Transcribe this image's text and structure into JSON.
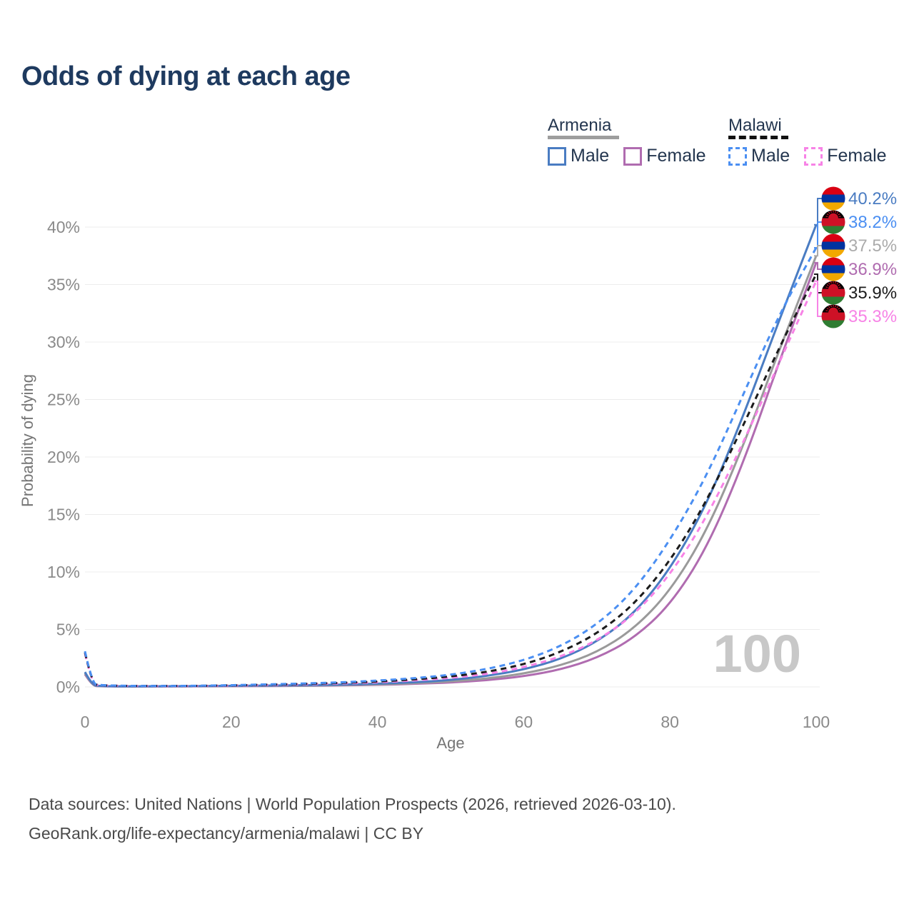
{
  "title": "Odds of dying at each age",
  "legend": {
    "groups": [
      {
        "name": "Armenia",
        "line_style": "solid",
        "rule_color": "#9e9e9e",
        "items": [
          {
            "label": "Male",
            "color": "#4a7cc2"
          },
          {
            "label": "Female",
            "color": "#b06cb0"
          }
        ]
      },
      {
        "name": "Malawi",
        "line_style": "dashed",
        "rule_color": "#111111",
        "items": [
          {
            "label": "Male",
            "color": "#4b8ff2"
          },
          {
            "label": "Female",
            "color": "#f783e6"
          }
        ]
      }
    ]
  },
  "footer": {
    "line1": "Data sources: United Nations | World Population Prospects (2026, retrieved 2026-03-10).",
    "line2": "GeoRank.org/life-expectancy/armenia/malawi | CC BY"
  },
  "chart_data": {
    "type": "line",
    "title": "Odds of dying at each age",
    "xlabel": "Age",
    "ylabel": "Probability of dying",
    "x_ticks": [
      0,
      20,
      40,
      60,
      80,
      100
    ],
    "y_ticks_pct": [
      0,
      5,
      10,
      15,
      20,
      25,
      30,
      35,
      40
    ],
    "xlim": [
      0,
      100
    ],
    "ylim_pct": [
      0,
      43
    ],
    "grid": "horizontal-only",
    "legend_position": "top-right",
    "watermark": "100",
    "ages": [
      0,
      1,
      2,
      5,
      10,
      15,
      20,
      25,
      30,
      35,
      40,
      45,
      50,
      55,
      60,
      65,
      70,
      75,
      80,
      85,
      90,
      95,
      100
    ],
    "series": [
      {
        "id": "armenia-female",
        "name": "Armenia Female",
        "color": "#b06cb0",
        "dash": "none",
        "values": [
          1.1,
          0.1,
          0.06,
          0.04,
          0.04,
          0.05,
          0.06,
          0.08,
          0.1,
          0.13,
          0.18,
          0.26,
          0.38,
          0.58,
          0.92,
          1.5,
          2.5,
          4.2,
          7.1,
          12.0,
          19.4,
          28.4,
          36.9
        ],
        "end_value_pct": 36.9
      },
      {
        "id": "armenia-combined",
        "name": "Armenia Combined",
        "color": "#9a9a9a",
        "dash": "none",
        "values": [
          1.2,
          0.12,
          0.07,
          0.05,
          0.05,
          0.06,
          0.08,
          0.1,
          0.12,
          0.16,
          0.22,
          0.32,
          0.47,
          0.72,
          1.15,
          1.85,
          3.0,
          5.0,
          8.3,
          13.5,
          20.9,
          29.4,
          37.5
        ],
        "end_value_pct": 37.5
      },
      {
        "id": "armenia-male",
        "name": "Armenia Male",
        "color": "#4a7cc2",
        "dash": "none",
        "values": [
          1.3,
          0.15,
          0.08,
          0.05,
          0.05,
          0.07,
          0.1,
          0.12,
          0.15,
          0.2,
          0.28,
          0.4,
          0.6,
          0.95,
          1.5,
          2.4,
          3.9,
          6.3,
          10.2,
          15.8,
          23.5,
          32.0,
          40.2
        ],
        "end_value_pct": 40.2
      },
      {
        "id": "malawi-female",
        "name": "Malawi Female",
        "color": "#f783e6",
        "dash": "dashed",
        "values": [
          2.9,
          0.26,
          0.13,
          0.09,
          0.07,
          0.08,
          0.11,
          0.16,
          0.22,
          0.3,
          0.4,
          0.56,
          0.78,
          1.12,
          1.7,
          2.6,
          4.0,
          6.2,
          9.7,
          14.7,
          21.2,
          28.3,
          35.3
        ],
        "end_value_pct": 35.3
      },
      {
        "id": "malawi-combined",
        "name": "Malawi Combined",
        "color": "#1c1c1c",
        "dash": "dashed",
        "values": [
          3.0,
          0.28,
          0.14,
          0.09,
          0.08,
          0.09,
          0.13,
          0.19,
          0.26,
          0.35,
          0.47,
          0.65,
          0.9,
          1.3,
          1.95,
          3.0,
          4.6,
          7.1,
          10.9,
          16.1,
          22.7,
          29.6,
          35.9
        ],
        "end_value_pct": 35.9
      },
      {
        "id": "malawi-male",
        "name": "Malawi Male",
        "color": "#4b8ff2",
        "dash": "dashed",
        "values": [
          3.1,
          0.3,
          0.15,
          0.1,
          0.08,
          0.1,
          0.15,
          0.22,
          0.3,
          0.4,
          0.55,
          0.75,
          1.05,
          1.55,
          2.3,
          3.5,
          5.4,
          8.3,
          12.7,
          18.3,
          25.4,
          32.5,
          38.2
        ],
        "end_value_pct": 38.2
      }
    ],
    "end_labels": [
      {
        "series": "armenia-male",
        "text": "40.2%",
        "flag": "armenia",
        "color": "#4a7cc2"
      },
      {
        "series": "malawi-male",
        "text": "38.2%",
        "flag": "malawi",
        "color": "#4b8ff2"
      },
      {
        "series": "armenia-combined",
        "text": "37.5%",
        "flag": "armenia",
        "color": "#ababab"
      },
      {
        "series": "armenia-female",
        "text": "36.9%",
        "flag": "armenia",
        "color": "#b06cb0"
      },
      {
        "series": "malawi-combined",
        "text": "35.9%",
        "flag": "malawi",
        "color": "#1c1c1c"
      },
      {
        "series": "malawi-female",
        "text": "35.3%",
        "flag": "malawi",
        "color": "#f783e6"
      }
    ],
    "flag_colors": {
      "armenia": [
        "#d90012",
        "#0033a0",
        "#f2a800"
      ],
      "malawi": [
        "#000000",
        "#ce1126",
        "#2f7d32"
      ],
      "malawi_sun": "#ce1126"
    }
  }
}
